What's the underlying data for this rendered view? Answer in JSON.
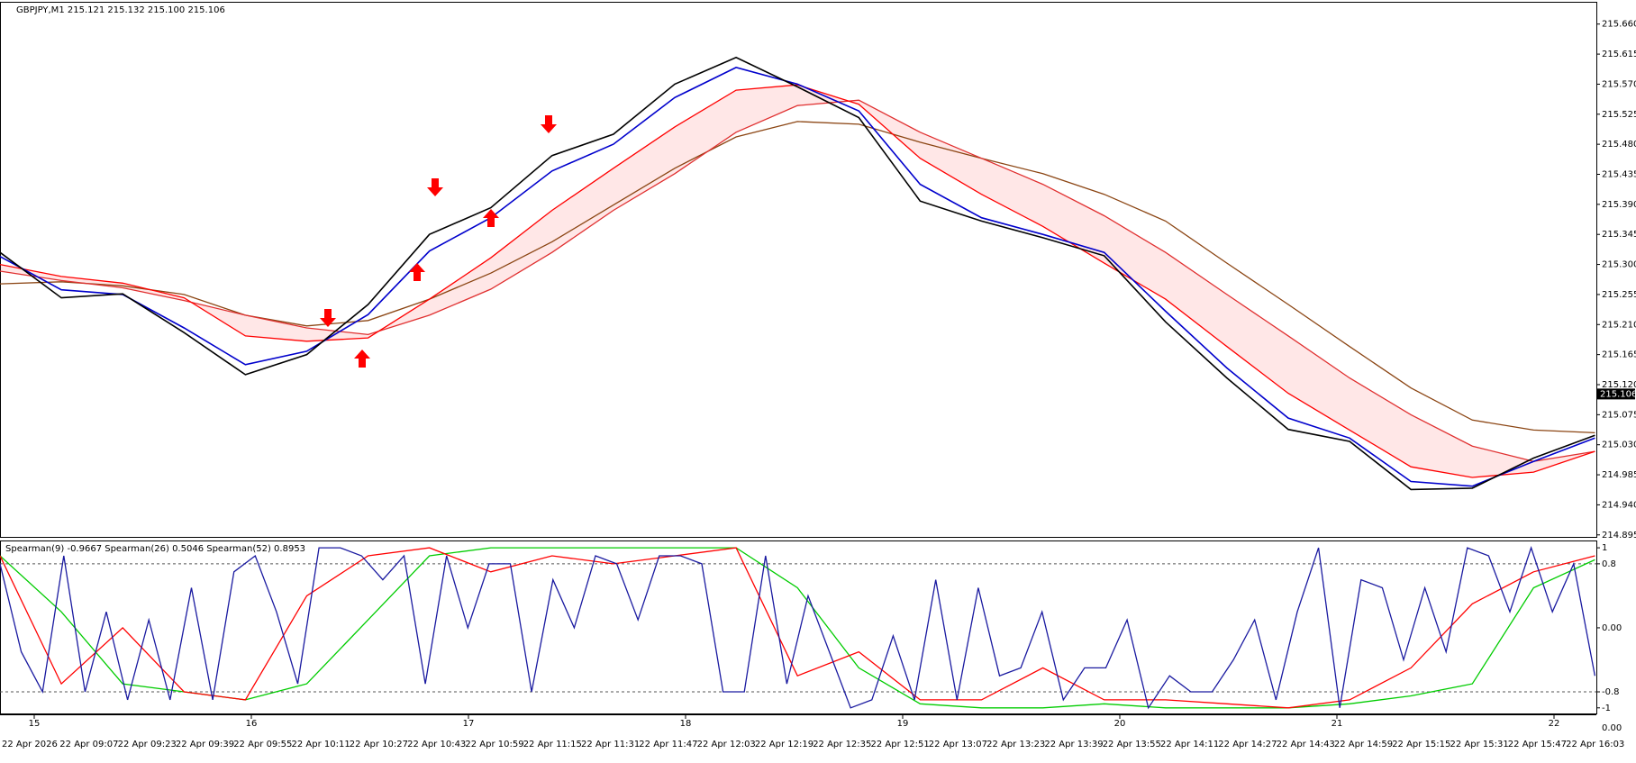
{
  "header": "GBPJPY,M1  215.121 215.132 215.100 215.106",
  "chart_data": [
    {
      "type": "line",
      "ylim": [
        214.892,
        215.692
      ],
      "yticks": [
        {
          "value": 214.895,
          "label": "214.895"
        },
        {
          "value": 214.94,
          "label": "214.940"
        },
        {
          "value": 214.985,
          "label": "214.985"
        },
        {
          "value": 215.03,
          "label": "215.030"
        },
        {
          "value": 215.075,
          "label": "215.075"
        },
        {
          "value": 215.12,
          "label": "215.120"
        },
        {
          "value": 215.165,
          "label": "215.165"
        },
        {
          "value": 215.21,
          "label": "215.210"
        },
        {
          "value": 215.255,
          "label": "215.255"
        },
        {
          "value": 215.3,
          "label": "215.300"
        },
        {
          "value": 215.345,
          "label": "215.345"
        },
        {
          "value": 215.39,
          "label": "215.390"
        },
        {
          "value": 215.435,
          "label": "215.435"
        },
        {
          "value": 215.48,
          "label": "215.480"
        },
        {
          "value": 215.525,
          "label": "215.525"
        },
        {
          "value": 215.57,
          "label": "215.570"
        },
        {
          "value": 215.615,
          "label": "215.615"
        },
        {
          "value": 215.66,
          "label": "215.660"
        }
      ],
      "current_price": {
        "value": 215.106,
        "label": "215.106"
      },
      "series": [
        {
          "color": "#8b4513",
          "values": [
            215.271,
            215.274,
            215.268,
            215.255,
            215.224,
            215.208,
            215.216,
            215.248,
            215.287,
            215.334,
            215.389,
            215.444,
            215.491,
            215.514,
            215.51,
            215.483,
            215.459,
            215.436,
            215.405,
            215.365,
            215.302,
            215.24,
            215.177,
            215.115,
            215.067,
            215.052,
            215.048
          ]
        },
        {
          "color": "#e03030",
          "values": [
            215.29,
            215.276,
            215.265,
            215.246,
            215.224,
            215.205,
            215.195,
            215.224,
            215.263,
            215.318,
            215.381,
            215.436,
            215.498,
            215.538,
            215.546,
            215.498,
            215.459,
            215.42,
            215.373,
            215.318,
            215.255,
            215.193,
            215.13,
            215.075,
            215.028,
            215.005,
            215.02
          ]
        },
        {
          "color": "#ff0000",
          "values": [
            215.3,
            215.282,
            215.272,
            215.25,
            215.193,
            215.185,
            215.19,
            215.248,
            215.31,
            215.381,
            215.444,
            215.506,
            215.561,
            215.569,
            215.54,
            215.459,
            215.405,
            215.357,
            215.302,
            215.248,
            215.177,
            215.107,
            215.052,
            214.997,
            214.981,
            214.989,
            215.02
          ]
        },
        {
          "color": "#0000cc",
          "values": [
            215.312,
            215.262,
            215.255,
            215.205,
            215.15,
            215.17,
            215.225,
            215.32,
            215.37,
            215.44,
            215.48,
            215.55,
            215.595,
            215.57,
            215.53,
            215.42,
            215.37,
            215.345,
            215.318,
            215.23,
            215.145,
            215.07,
            215.04,
            214.975,
            214.968,
            215.005,
            215.04
          ]
        },
        {
          "color": "#000000",
          "values": [
            215.318,
            215.25,
            215.256,
            215.198,
            215.135,
            215.165,
            215.24,
            215.345,
            215.385,
            215.463,
            215.495,
            215.57,
            215.61,
            215.566,
            215.52,
            215.395,
            215.365,
            215.34,
            215.313,
            215.214,
            215.13,
            215.053,
            215.035,
            214.963,
            214.965,
            215.01,
            215.044
          ]
        }
      ]
    },
    {
      "type": "line",
      "title": "Spearman(9) -0.9667  Spearman(26) 0.5046  Spearman(52) 0.8953",
      "ylim": [
        -1.07,
        1.08
      ],
      "yticks": [
        1,
        0.8,
        {
          "value": 0,
          "label": "0.00"
        },
        -0.8,
        -1
      ],
      "levels": [
        0.8,
        -0.8
      ],
      "series": [
        {
          "color": "#00cc00",
          "values": [
            0.9,
            0.2,
            -0.7,
            -0.8,
            -0.9,
            -0.7,
            0.1,
            0.9,
            1.0,
            1.0,
            1.0,
            1.0,
            1.0,
            0.5,
            -0.5,
            -0.95,
            -1.0,
            -1.0,
            -0.95,
            -1.0,
            -1.0,
            -1.0,
            -0.95,
            -0.85,
            -0.7,
            0.5,
            0.85
          ]
        },
        {
          "color": "#ff0000",
          "values": [
            0.9,
            -0.7,
            0.0,
            -0.8,
            -0.9,
            0.4,
            0.9,
            1.0,
            0.7,
            0.9,
            0.8,
            0.9,
            1.0,
            -0.6,
            -0.3,
            -0.9,
            -0.9,
            -0.5,
            -0.9,
            -0.9,
            -0.95,
            -1.0,
            -0.9,
            -0.5,
            0.3,
            0.7,
            0.9
          ]
        },
        {
          "color": "#1a1aa0",
          "values": [
            0.8,
            -0.3,
            -0.8,
            0.9,
            -0.8,
            0.2,
            -0.9,
            0.1,
            -0.9,
            0.5,
            -0.9,
            0.7,
            0.9,
            0.2,
            -0.7,
            1.0,
            1.0,
            0.9,
            0.6,
            0.9,
            -0.7,
            0.9,
            0.0,
            0.8,
            0.8,
            -0.8,
            0.6,
            0.0,
            0.9,
            0.8,
            0.1,
            0.9,
            0.9,
            0.8,
            -0.8,
            -0.8,
            0.9,
            -0.7,
            0.4,
            -0.3,
            -1.0,
            -0.9,
            -0.1,
            -0.9,
            0.6,
            -0.9,
            0.5,
            -0.6,
            -0.5,
            0.2,
            -0.9,
            -0.5,
            -0.5,
            0.1,
            -1.0,
            -0.6,
            -0.8,
            -0.8,
            -0.4,
            0.1,
            -0.9,
            0.2,
            1.0,
            -1.0,
            0.6,
            0.5,
            -0.4,
            0.5,
            -0.3,
            1.0,
            0.9,
            0.2,
            1.0,
            0.2,
            0.8,
            -0.6
          ]
        }
      ]
    }
  ],
  "x_axis": {
    "date_labels": [
      "15",
      "16",
      "17",
      "18",
      "19",
      "20",
      "21",
      "22"
    ],
    "time_labels": [
      "22 Apr 2026",
      "22 Apr 09:07",
      "22 Apr 09:23",
      "22 Apr 09:39",
      "22 Apr 09:55",
      "22 Apr 10:11",
      "22 Apr 10:27",
      "22 Apr 10:43",
      "22 Apr 10:59",
      "22 Apr 11:15",
      "22 Apr 11:31",
      "22 Apr 11:47",
      "22 Apr 12:03",
      "22 Apr 12:19",
      "22 Apr 12:35",
      "22 Apr 12:51",
      "22 Apr 13:07",
      "22 Apr 13:23",
      "22 Apr 13:39",
      "22 Apr 13:55",
      "22 Apr 14:11",
      "22 Apr 14:27",
      "22 Apr 14:43",
      "22 Apr 14:59",
      "22 Apr 15:15",
      "22 Apr 15:31",
      "22 Apr 15:47",
      "22 Apr 16:03"
    ],
    "corner_label": "0.00"
  }
}
